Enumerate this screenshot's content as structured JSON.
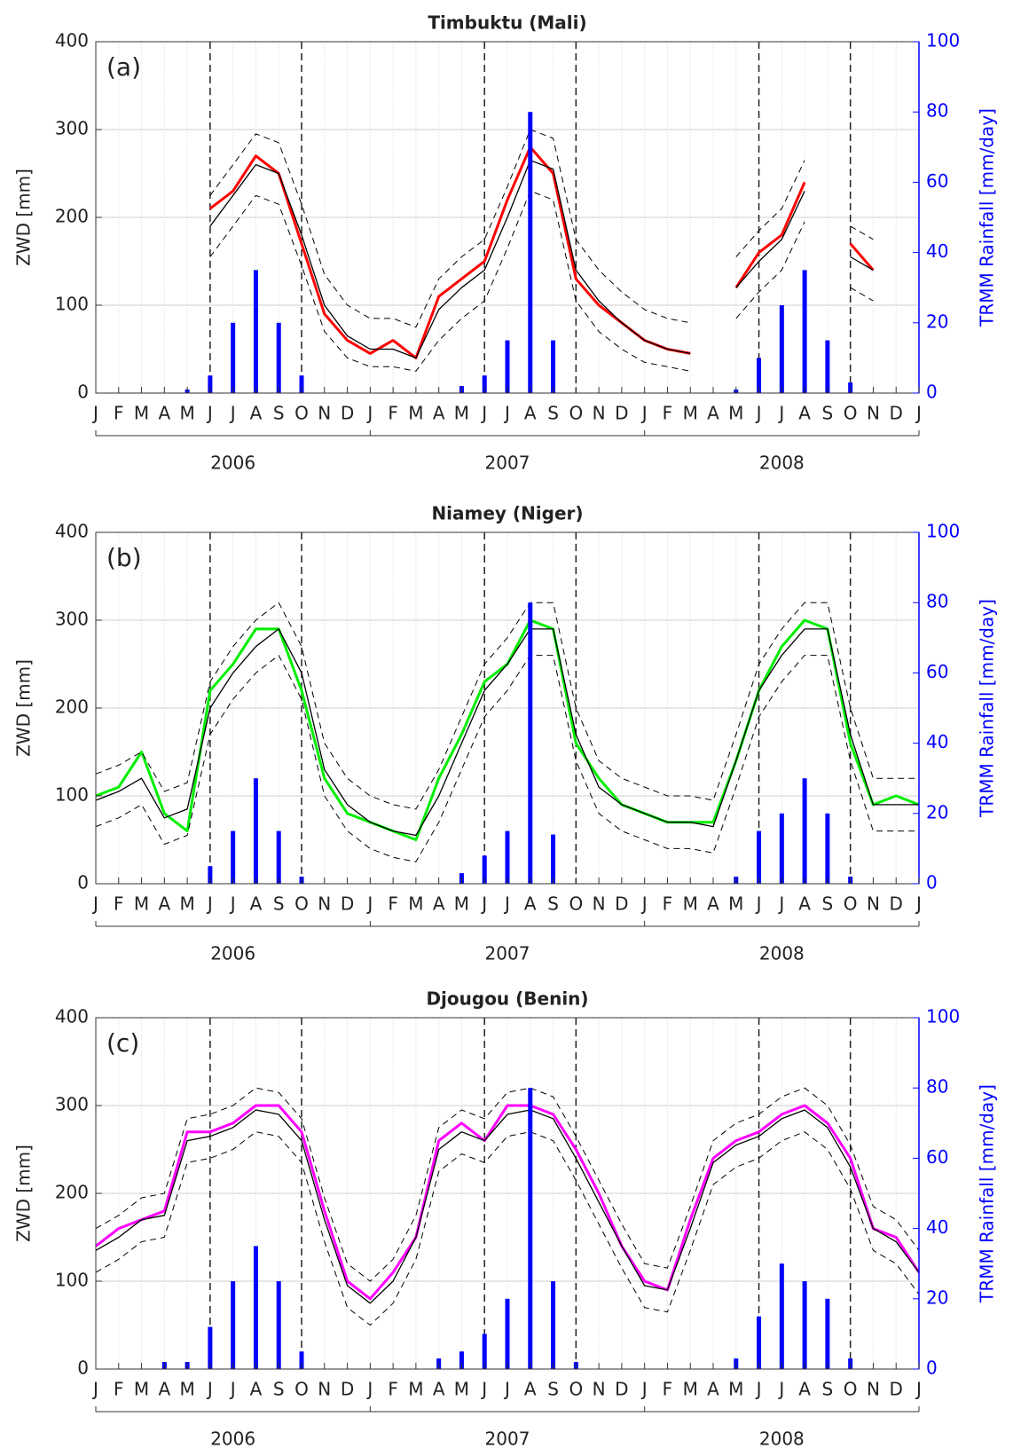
{
  "chart_data": [
    {
      "type": "line",
      "title": "Timbuktu (Mali)",
      "annotation": "(a)",
      "ylabel": "ZWD [mm]",
      "y2label": "TRMM Rainfall [mm/day]",
      "categories": [
        "J",
        "F",
        "M",
        "A",
        "M",
        "J",
        "J",
        "A",
        "S",
        "O",
        "N",
        "D",
        "J",
        "F",
        "M",
        "A",
        "M",
        "J",
        "J",
        "A",
        "S",
        "O",
        "N",
        "D",
        "J",
        "F",
        "M",
        "A",
        "M",
        "J",
        "J",
        "A",
        "S",
        "O",
        "N",
        "D",
        "J"
      ],
      "years": [
        "2006",
        "2007",
        "2008"
      ],
      "season_markers": [
        5,
        9,
        17,
        21,
        29,
        33
      ],
      "ylim": [
        0,
        400
      ],
      "yticks": [
        0,
        100,
        200,
        300,
        400
      ],
      "y2lim": [
        0,
        100
      ],
      "y2ticks": [
        0,
        20,
        40,
        60,
        80,
        100
      ],
      "grid": true,
      "series": [
        {
          "color": "#ff0000",
          "width": 3,
          "values": [
            null,
            null,
            null,
            null,
            null,
            210,
            230,
            270,
            250,
            170,
            90,
            60,
            45,
            60,
            40,
            110,
            130,
            150,
            220,
            280,
            250,
            130,
            100,
            80,
            60,
            50,
            45,
            null,
            120,
            160,
            180,
            240,
            null,
            170,
            140,
            null,
            null
          ]
        },
        {
          "color": "#000000",
          "width": 1.3,
          "values": [
            null,
            null,
            null,
            null,
            null,
            190,
            225,
            260,
            250,
            180,
            100,
            65,
            50,
            50,
            40,
            95,
            120,
            140,
            200,
            265,
            255,
            140,
            105,
            80,
            60,
            50,
            45,
            null,
            120,
            150,
            175,
            230,
            null,
            155,
            140,
            null,
            null
          ]
        },
        {
          "color": "#000000",
          "width": 1,
          "dash": true,
          "values": [
            null,
            null,
            null,
            null,
            null,
            225,
            260,
            295,
            285,
            215,
            135,
            100,
            85,
            85,
            75,
            130,
            155,
            175,
            235,
            300,
            290,
            175,
            140,
            115,
            95,
            85,
            80,
            null,
            155,
            185,
            210,
            265,
            null,
            190,
            175,
            null,
            null
          ]
        },
        {
          "color": "#000000",
          "width": 1,
          "dash": true,
          "values": [
            null,
            null,
            null,
            null,
            null,
            155,
            190,
            225,
            215,
            145,
            70,
            40,
            30,
            30,
            25,
            60,
            85,
            105,
            165,
            230,
            220,
            105,
            70,
            50,
            35,
            30,
            25,
            null,
            85,
            115,
            140,
            195,
            null,
            120,
            105,
            null,
            null
          ]
        },
        {
          "color": "#0000ff",
          "axis": "y2",
          "kind": "bar",
          "values": [
            0,
            0,
            0,
            0,
            1,
            5,
            20,
            35,
            20,
            5,
            0,
            0,
            0,
            0,
            0,
            0,
            2,
            5,
            15,
            80,
            15,
            0,
            0,
            0,
            0,
            0,
            0,
            0,
            1,
            10,
            25,
            35,
            15,
            3,
            0,
            0,
            null
          ]
        }
      ]
    },
    {
      "type": "line",
      "title": "Niamey (Niger)",
      "annotation": "(b)",
      "ylabel": "ZWD [mm]",
      "y2label": "TRMM Rainfall [mm/day]",
      "categories": [
        "J",
        "F",
        "M",
        "A",
        "M",
        "J",
        "J",
        "A",
        "S",
        "O",
        "N",
        "D",
        "J",
        "F",
        "M",
        "A",
        "M",
        "J",
        "J",
        "A",
        "S",
        "O",
        "N",
        "D",
        "J",
        "F",
        "M",
        "A",
        "M",
        "J",
        "J",
        "A",
        "S",
        "O",
        "N",
        "D",
        "J"
      ],
      "years": [
        "2006",
        "2007",
        "2008"
      ],
      "season_markers": [
        5,
        9,
        17,
        21,
        29,
        33
      ],
      "ylim": [
        0,
        400
      ],
      "yticks": [
        0,
        100,
        200,
        300,
        400
      ],
      "y2lim": [
        0,
        100
      ],
      "y2ticks": [
        0,
        20,
        40,
        60,
        80,
        100
      ],
      "grid": true,
      "series": [
        {
          "color": "#00ee00",
          "width": 3,
          "values": [
            100,
            110,
            150,
            80,
            60,
            220,
            250,
            290,
            290,
            220,
            120,
            80,
            70,
            60,
            50,
            120,
            170,
            230,
            250,
            300,
            290,
            160,
            120,
            90,
            80,
            70,
            70,
            70,
            140,
            220,
            270,
            300,
            290,
            160,
            90,
            100,
            90
          ]
        },
        {
          "color": "#000000",
          "width": 1.3,
          "values": [
            95,
            105,
            120,
            75,
            85,
            200,
            240,
            270,
            290,
            240,
            130,
            90,
            70,
            60,
            55,
            100,
            160,
            220,
            250,
            290,
            290,
            170,
            110,
            90,
            80,
            70,
            70,
            65,
            140,
            220,
            260,
            290,
            290,
            170,
            90,
            90,
            90
          ]
        },
        {
          "color": "#000000",
          "width": 1,
          "dash": true,
          "values": [
            125,
            135,
            150,
            105,
            115,
            230,
            270,
            300,
            320,
            270,
            160,
            120,
            100,
            90,
            85,
            130,
            190,
            250,
            280,
            320,
            320,
            200,
            140,
            120,
            110,
            100,
            100,
            95,
            170,
            250,
            290,
            320,
            320,
            200,
            120,
            120,
            120
          ]
        },
        {
          "color": "#000000",
          "width": 1,
          "dash": true,
          "values": [
            65,
            75,
            90,
            45,
            55,
            170,
            210,
            240,
            260,
            210,
            100,
            60,
            40,
            30,
            25,
            70,
            130,
            190,
            220,
            260,
            260,
            140,
            80,
            60,
            50,
            40,
            40,
            35,
            110,
            190,
            230,
            260,
            260,
            140,
            60,
            60,
            60
          ]
        },
        {
          "color": "#0000ff",
          "axis": "y2",
          "kind": "bar",
          "values": [
            0,
            0,
            0,
            0,
            0,
            5,
            15,
            30,
            15,
            2,
            0,
            0,
            0,
            0,
            0,
            0,
            3,
            8,
            15,
            80,
            14,
            0,
            0,
            0,
            0,
            0,
            0,
            0,
            2,
            15,
            20,
            30,
            20,
            2,
            0,
            0,
            null
          ]
        }
      ]
    },
    {
      "type": "line",
      "title": "Djougou (Benin)",
      "annotation": "(c)",
      "ylabel": "ZWD [mm]",
      "y2label": "TRMM Rainfall [mm/day]",
      "categories": [
        "J",
        "F",
        "M",
        "A",
        "M",
        "J",
        "J",
        "A",
        "S",
        "O",
        "N",
        "D",
        "J",
        "F",
        "M",
        "A",
        "M",
        "J",
        "J",
        "A",
        "S",
        "O",
        "N",
        "D",
        "J",
        "F",
        "M",
        "A",
        "M",
        "J",
        "J",
        "A",
        "S",
        "O",
        "N",
        "D",
        "J"
      ],
      "years": [
        "2006",
        "2007",
        "2008"
      ],
      "season_markers": [
        5,
        9,
        17,
        21,
        29,
        33
      ],
      "ylim": [
        0,
        400
      ],
      "yticks": [
        0,
        100,
        200,
        300,
        400
      ],
      "y2lim": [
        0,
        100
      ],
      "y2ticks": [
        0,
        20,
        40,
        60,
        80,
        100
      ],
      "grid": true,
      "series": [
        {
          "color": "#ff00ff",
          "width": 3,
          "values": [
            140,
            160,
            170,
            180,
            270,
            270,
            280,
            300,
            300,
            270,
            180,
            100,
            80,
            110,
            150,
            260,
            280,
            260,
            300,
            300,
            290,
            250,
            200,
            140,
            100,
            90,
            170,
            240,
            260,
            270,
            290,
            300,
            280,
            240,
            160,
            150,
            110
          ]
        },
        {
          "color": "#000000",
          "width": 1.3,
          "values": [
            135,
            150,
            170,
            175,
            260,
            265,
            275,
            295,
            290,
            260,
            170,
            95,
            75,
            100,
            150,
            250,
            270,
            260,
            290,
            295,
            285,
            240,
            190,
            140,
            95,
            90,
            160,
            235,
            255,
            265,
            285,
            295,
            275,
            230,
            160,
            145,
            110
          ]
        },
        {
          "color": "#000000",
          "width": 1,
          "dash": true,
          "values": [
            160,
            175,
            195,
            200,
            285,
            290,
            300,
            320,
            315,
            285,
            195,
            120,
            100,
            125,
            175,
            275,
            295,
            285,
            315,
            320,
            310,
            265,
            215,
            165,
            120,
            115,
            185,
            260,
            280,
            290,
            310,
            320,
            300,
            255,
            185,
            170,
            135
          ]
        },
        {
          "color": "#000000",
          "width": 1,
          "dash": true,
          "values": [
            110,
            125,
            145,
            150,
            235,
            240,
            250,
            270,
            265,
            235,
            145,
            70,
            50,
            75,
            125,
            225,
            245,
            235,
            265,
            270,
            260,
            215,
            165,
            115,
            70,
            65,
            135,
            210,
            230,
            240,
            260,
            270,
            250,
            205,
            135,
            120,
            85
          ]
        },
        {
          "color": "#0000ff",
          "axis": "y2",
          "kind": "bar",
          "values": [
            0,
            0,
            0,
            2,
            2,
            12,
            25,
            35,
            25,
            5,
            0,
            0,
            0,
            0,
            0,
            3,
            5,
            10,
            20,
            80,
            25,
            2,
            0,
            0,
            0,
            0,
            0,
            0,
            3,
            15,
            30,
            25,
            20,
            3,
            0,
            0,
            null
          ]
        }
      ]
    }
  ]
}
